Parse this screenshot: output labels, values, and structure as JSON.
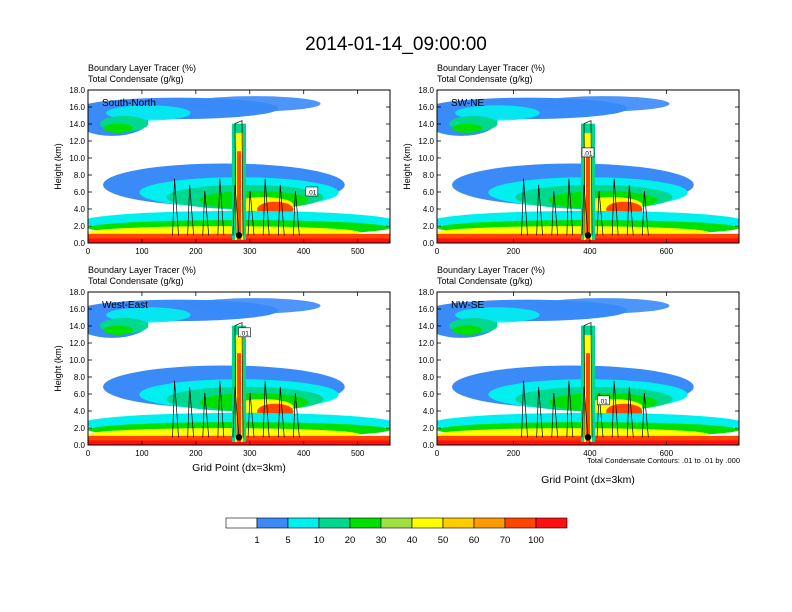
{
  "figure": {
    "title": "2014-01-14_09:00:00",
    "note": "Total Condensate Contours: .01 to .01 by .000"
  },
  "chart_data": [
    {
      "type": "heatmap",
      "panel_label": "South-North",
      "subtitle_line1": "Boundary Layer Tracer   (%)",
      "subtitle_line2": "Total Condensate   (g/kg)",
      "ylabel": "Height (km)",
      "xlabel": "",
      "xlim": [
        0,
        560
      ],
      "ylim": [
        0,
        18
      ],
      "xticks": [
        "0",
        "100",
        "200",
        "300",
        "400",
        "500"
      ],
      "yticks": [
        "0.0",
        "2.0",
        "4.0",
        "6.0",
        "8.0",
        "10.0",
        "12.0",
        "14.0",
        "16.0",
        "18.0"
      ],
      "marker_x": 280,
      "contour_label": ".01",
      "contour_label_x": 415,
      "contour_label_y": 6.0
    },
    {
      "type": "heatmap",
      "panel_label": "SW-NE",
      "subtitle_line1": "Boundary Layer Tracer   (%)",
      "subtitle_line2": "Total Condensate   (g/kg)",
      "ylabel": "Height (km)",
      "xlabel": "",
      "xlim": [
        0,
        790
      ],
      "ylim": [
        0,
        18
      ],
      "xticks": [
        "0",
        "200",
        "400",
        "600"
      ],
      "yticks": [
        "0.0",
        "2.0",
        "4.0",
        "6.0",
        "8.0",
        "10.0",
        "12.0",
        "14.0",
        "16.0",
        "18.0"
      ],
      "marker_x": 395,
      "contour_label": ".01",
      "contour_label_x": 395,
      "contour_label_y": 10.6
    },
    {
      "type": "heatmap",
      "panel_label": "West-East",
      "subtitle_line1": "Boundary Layer Tracer   (%)",
      "subtitle_line2": "Total Condensate   (g/kg)",
      "ylabel": "Height (km)",
      "xlabel": "Grid Point (dx=3km)",
      "xlim": [
        0,
        560
      ],
      "ylim": [
        0,
        18
      ],
      "xticks": [
        "0",
        "100",
        "200",
        "300",
        "400",
        "500"
      ],
      "yticks": [
        "0.0",
        "2.0",
        "4.0",
        "6.0",
        "8.0",
        "10.0",
        "12.0",
        "14.0",
        "16.0",
        "18.0"
      ],
      "marker_x": 280,
      "contour_label": ".01",
      "contour_label_x": 290,
      "contour_label_y": 13.2
    },
    {
      "type": "heatmap",
      "panel_label": "NW-SE",
      "subtitle_line1": "Boundary Layer Tracer   (%)",
      "subtitle_line2": "Total Condensate   (g/kg)",
      "ylabel": "",
      "xlabel": "Grid Point (dx=3km)",
      "xlim": [
        0,
        790
      ],
      "ylim": [
        0,
        18
      ],
      "xticks": [
        "0",
        "200",
        "400",
        "600"
      ],
      "yticks": [
        "0.0",
        "2.0",
        "4.0",
        "6.0",
        "8.0",
        "10.0",
        "12.0",
        "14.0",
        "16.0",
        "18.0"
      ],
      "marker_x": 395,
      "contour_label": ".01",
      "contour_label_x": 435,
      "contour_label_y": 5.2
    }
  ],
  "colorbar": {
    "labels": [
      "1",
      "5",
      "10",
      "20",
      "30",
      "40",
      "50",
      "60",
      "70",
      "100"
    ],
    "colors": [
      "#ffffff",
      "#3a8af8",
      "#00f0f0",
      "#00d890",
      "#00e000",
      "#a0e040",
      "#ffff00",
      "#ffcc00",
      "#ff9a00",
      "#ff4500",
      "#ff1010"
    ]
  }
}
